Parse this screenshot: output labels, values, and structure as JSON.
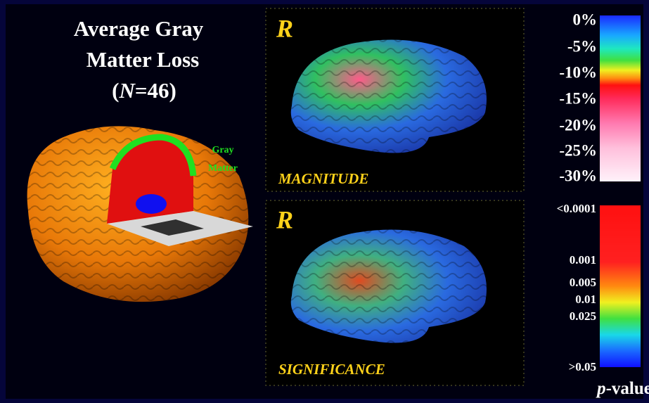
{
  "title": {
    "lines": [
      "Average Gray",
      "Matter Loss"
    ],
    "n_parts": [
      "(",
      "N",
      "=46)"
    ]
  },
  "left_image": {
    "label_lines": [
      "Gray",
      "Matter"
    ]
  },
  "panels": [
    {
      "hemisphere": "R",
      "caption": "MAGNITUDE"
    },
    {
      "hemisphere": "R",
      "caption": "SIGNIFICANCE"
    }
  ],
  "magnitude_scale": {
    "labels": [
      "0%",
      "-5%",
      "-10%",
      "-15%",
      "-20%",
      "-25%",
      "-30%"
    ]
  },
  "significance_scale": {
    "labels": [
      "<0.0001",
      "0.001",
      "0.005",
      "0.01",
      "0.025",
      ">0.05"
    ],
    "title_parts": [
      "p",
      "-value"
    ]
  }
}
